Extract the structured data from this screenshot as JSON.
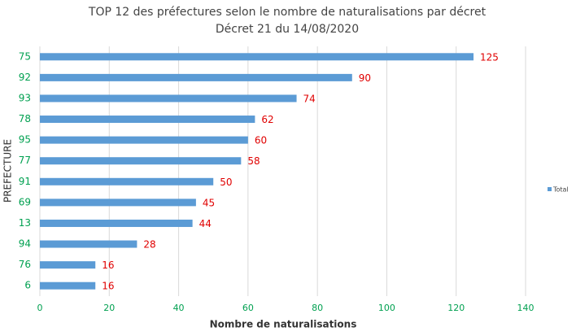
{
  "chart_data": {
    "type": "hbar",
    "title": "TOP 12 des préfectures selon le nombre de naturalisations par décret",
    "subtitle": "Décret 21 du 14/08/2020",
    "x_label": "Nombre de naturalisations",
    "y_label": "PREFECTURE",
    "categories": [
      "75",
      "92",
      "93",
      "78",
      "95",
      "77",
      "91",
      "69",
      "13",
      "94",
      "76",
      "6"
    ],
    "series": [
      {
        "name": "Total",
        "color": "#5b9bd5",
        "values": [
          125,
          90,
          74,
          62,
          60,
          58,
          50,
          45,
          44,
          28,
          16,
          16
        ]
      }
    ],
    "xlim": [
      0,
      140
    ],
    "xticks": [
      0,
      20,
      40,
      60,
      80,
      100,
      120,
      140
    ],
    "grid": true,
    "legend": "right"
  }
}
